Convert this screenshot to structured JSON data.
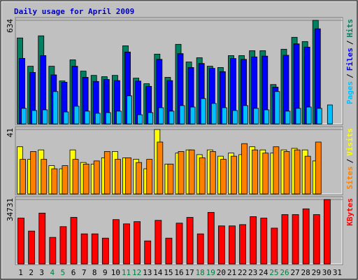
{
  "chart_data": {
    "type": "bar",
    "title": "Daily usage for April 2009",
    "categories": [
      "1",
      "2",
      "3",
      "4",
      "5",
      "6",
      "7",
      "8",
      "9",
      "10",
      "11",
      "12",
      "13",
      "14",
      "15",
      "16",
      "17",
      "18",
      "19",
      "20",
      "21",
      "22",
      "23",
      "24",
      "25",
      "26",
      "27",
      "28",
      "29",
      "30",
      "31"
    ],
    "category_colors": [
      "#000000",
      "#000000",
      "#000000",
      "#008040",
      "#008040",
      "#000000",
      "#000000",
      "#000000",
      "#000000",
      "#000000",
      "#008040",
      "#008040",
      "#000000",
      "#000000",
      "#000000",
      "#000000",
      "#000000",
      "#008040",
      "#008040",
      "#000000",
      "#000000",
      "#000000",
      "#000000",
      "#000000",
      "#008040",
      "#008040",
      "#000000",
      "#000000",
      "#000000",
      "#000000",
      "#000000"
    ],
    "separator": "/",
    "panels": [
      {
        "ylim": [
          0,
          634
        ],
        "yticks": [
          634
        ],
        "series": [
          {
            "name": "Hits",
            "color": "#008060",
            "values": [
              526,
              353,
              539,
              353,
              263,
              392,
              323,
              297,
              289,
              297,
              478,
              280,
              246,
              427,
              285,
              487,
              379,
              405,
              353,
              345,
              418,
              418,
              448,
              448,
              241,
              457,
              530,
              504,
              634,
              null,
              null
            ]
          },
          {
            "name": "Files",
            "color": "#0000ff",
            "values": [
              401,
              315,
              418,
              300,
              255,
              353,
              285,
              260,
              272,
              265,
              440,
              262,
              230,
              395,
              265,
              430,
              345,
              370,
              340,
              320,
              400,
              395,
              410,
              415,
              225,
              420,
              490,
              470,
              582,
              null,
              null
            ]
          },
          {
            "name": "Pages",
            "color": "#00c0ff",
            "values": [
              95,
              82,
              86,
              198,
              73,
              108,
              78,
              65,
              69,
              78,
              172,
              56,
              69,
              99,
              78,
              112,
              103,
              155,
              125,
              99,
              82,
              112,
              95,
              86,
              198,
              78,
              95,
              103,
              95,
              116,
              null
            ]
          }
        ]
      },
      {
        "ylim": [
          0,
          41
        ],
        "yticks": [
          41
        ],
        "series": [
          {
            "name": "Visits",
            "color": "#ffff00",
            "values": [
              30,
              22,
              28,
              18,
              16,
              28,
              20,
              19,
              23,
              27,
              23,
              22,
              16,
              41,
              19,
              26,
              28,
              25,
              28,
              24,
              26,
              25,
              30,
              28,
              26,
              28,
              29,
              28,
              21,
              null,
              null
            ]
          },
          {
            "name": "Sites",
            "color": "#ff8000",
            "values": [
              22,
              27,
              22,
              16,
              18,
              22,
              19,
              21,
              27,
              22,
              23,
              20,
              22,
              33,
              19,
              27,
              28,
              23,
              27,
              22,
              24,
              32,
              28,
              26,
              30,
              27,
              28,
              24,
              33,
              null,
              null
            ]
          }
        ]
      },
      {
        "ylim": [
          0,
          34731
        ],
        "yticks": [
          34731
        ],
        "series": [
          {
            "name": "KBytes",
            "color": "#ff0000",
            "values": [
              24700,
              17700,
              27400,
              14300,
              20100,
              25100,
              16200,
              16200,
              13900,
              23900,
              21600,
              22800,
              12400,
              23500,
              13900,
              22000,
              25100,
              16200,
              27800,
              20500,
              20500,
              21200,
              25500,
              24700,
              19300,
              26600,
              26600,
              29700,
              26600,
              34731,
              null
            ]
          }
        ]
      }
    ]
  }
}
